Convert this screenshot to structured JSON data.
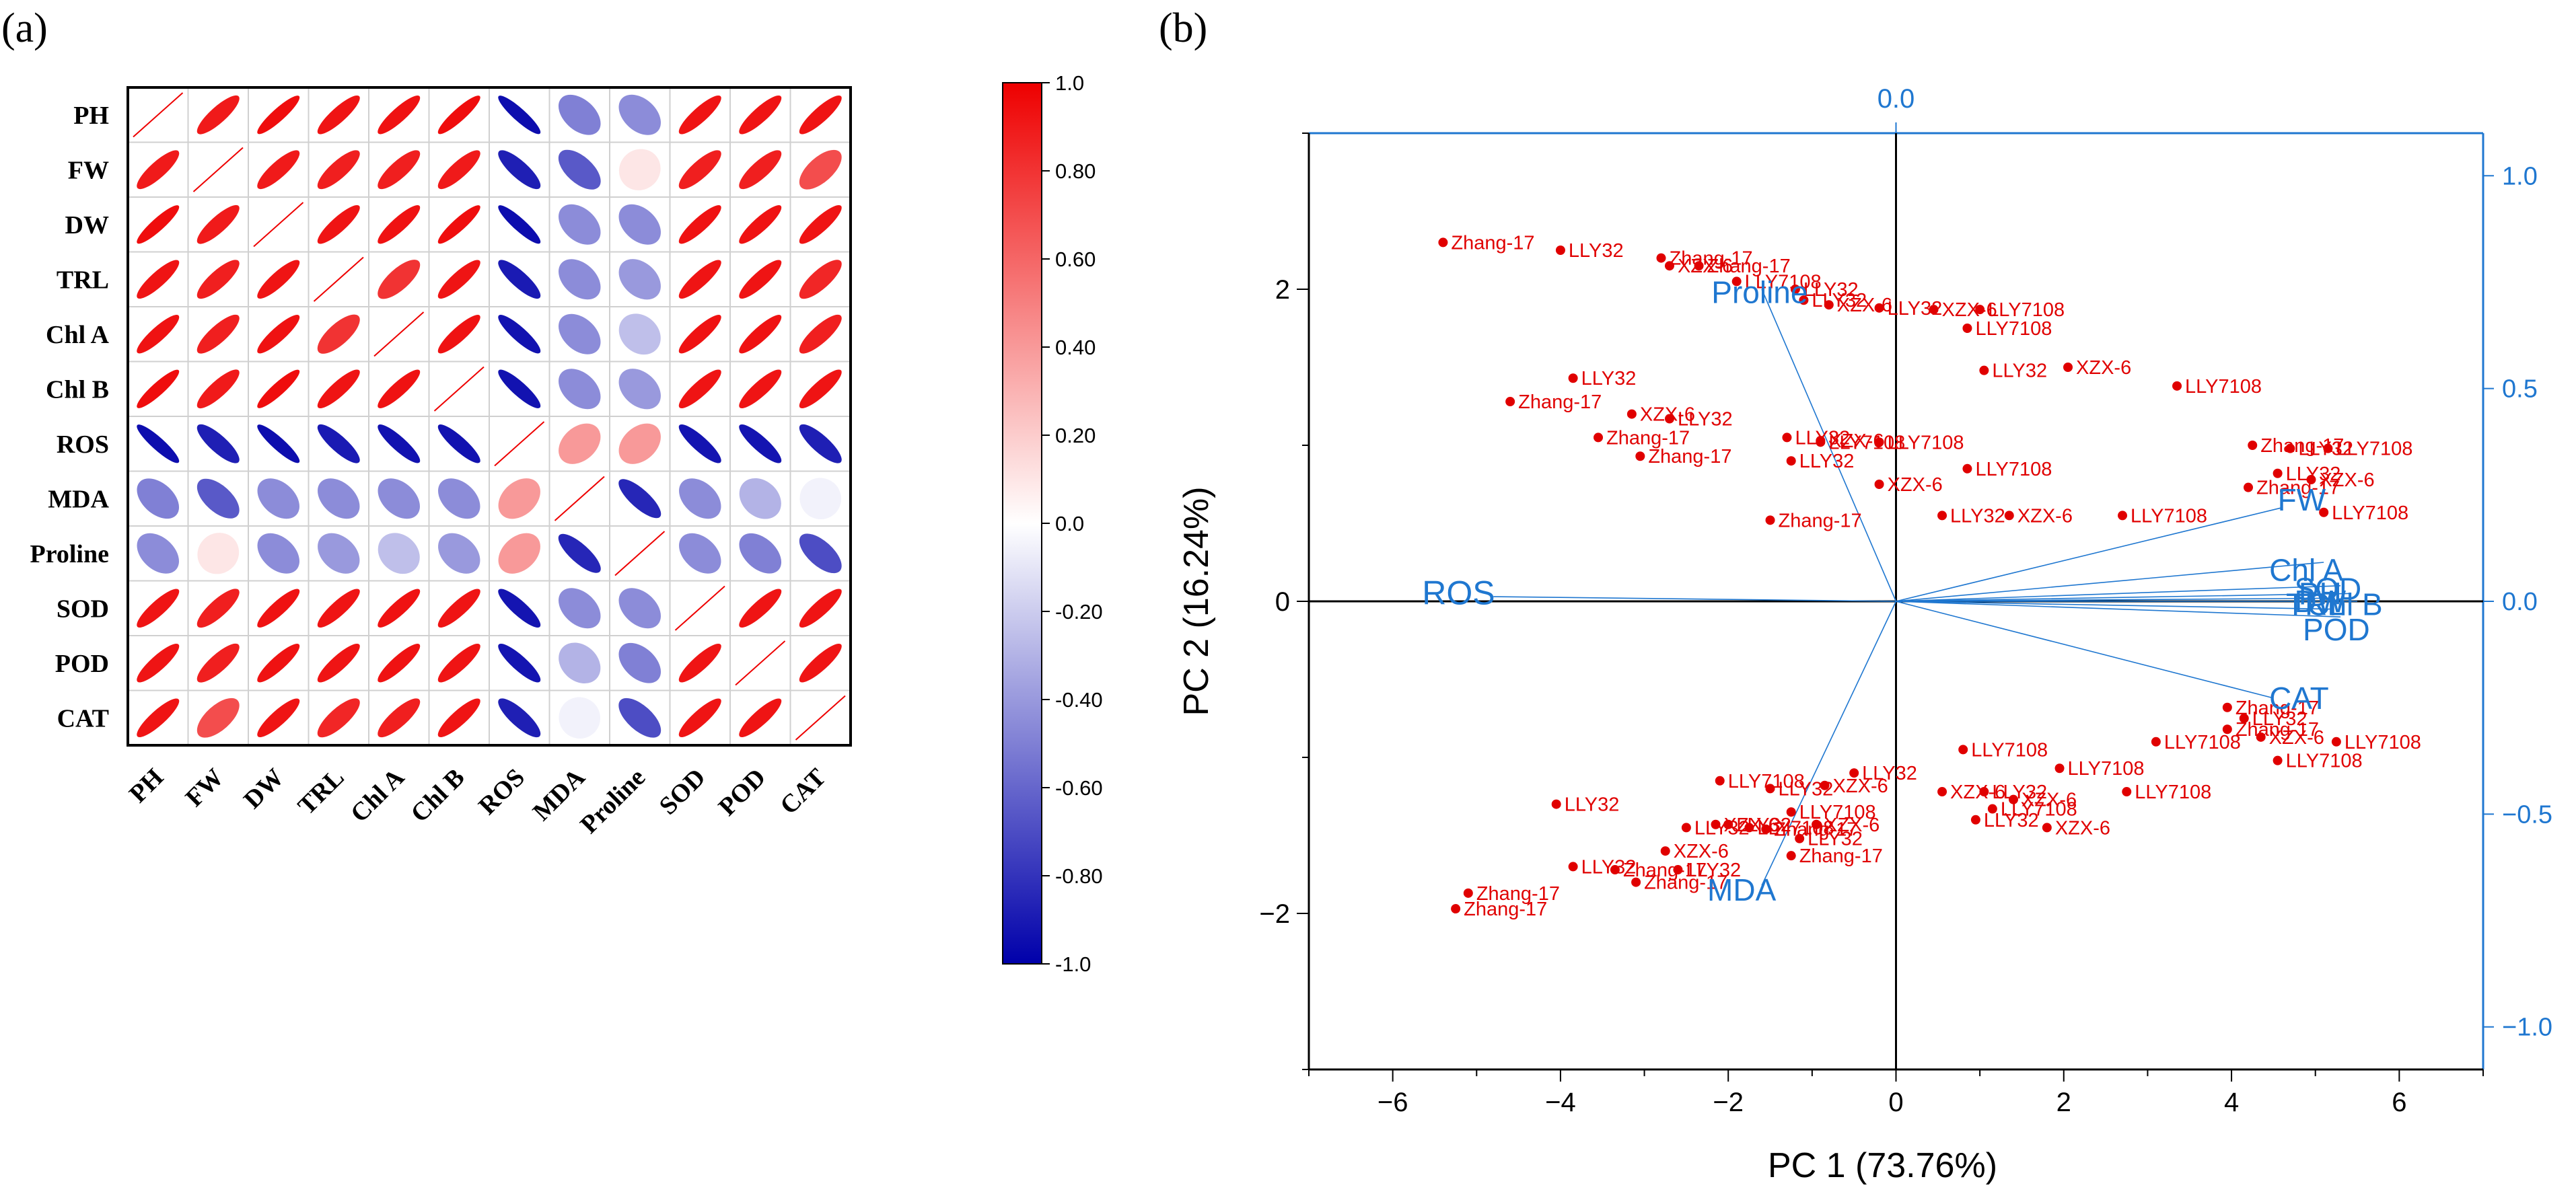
{
  "panel_a_label": "(a)",
  "panel_b_label": "(b)",
  "chart_data": [
    {
      "type": "heatmap",
      "subtype": "correlation-ellipse",
      "variables": [
        "PH",
        "FW",
        "DW",
        "TRL",
        "Chl A",
        "Chl B",
        "ROS",
        "MDA",
        "Proline",
        "SOD",
        "POD",
        "CAT"
      ],
      "matrix": [
        [
          1.0,
          0.9,
          0.95,
          0.92,
          0.93,
          0.95,
          -0.95,
          -0.5,
          -0.45,
          0.92,
          0.92,
          0.92
        ],
        [
          0.9,
          1.0,
          0.9,
          0.88,
          0.88,
          0.9,
          -0.88,
          -0.65,
          0.1,
          0.88,
          0.88,
          0.7
        ],
        [
          0.95,
          0.9,
          1.0,
          0.92,
          0.93,
          0.95,
          -0.95,
          -0.45,
          -0.45,
          0.93,
          0.93,
          0.92
        ],
        [
          0.92,
          0.88,
          0.92,
          1.0,
          0.8,
          0.92,
          -0.9,
          -0.45,
          -0.4,
          0.92,
          0.92,
          0.85
        ],
        [
          0.93,
          0.88,
          0.93,
          0.8,
          1.0,
          0.93,
          -0.93,
          -0.45,
          -0.25,
          0.93,
          0.93,
          0.88
        ],
        [
          0.95,
          0.9,
          0.95,
          0.92,
          0.93,
          1.0,
          -0.93,
          -0.45,
          -0.4,
          0.92,
          0.92,
          0.92
        ],
        [
          -0.95,
          -0.88,
          -0.95,
          -0.9,
          -0.93,
          -0.93,
          1.0,
          0.4,
          0.4,
          -0.92,
          -0.92,
          -0.88
        ],
        [
          -0.5,
          -0.65,
          -0.45,
          -0.45,
          -0.45,
          -0.45,
          0.4,
          1.0,
          -0.85,
          -0.45,
          -0.3,
          -0.05
        ],
        [
          -0.45,
          0.1,
          -0.45,
          -0.4,
          -0.25,
          -0.4,
          0.4,
          -0.85,
          1.0,
          -0.45,
          -0.5,
          -0.7
        ],
        [
          0.92,
          0.88,
          0.93,
          0.92,
          0.93,
          0.92,
          -0.92,
          -0.45,
          -0.45,
          1.0,
          0.92,
          0.92
        ],
        [
          0.92,
          0.88,
          0.93,
          0.92,
          0.93,
          0.92,
          -0.92,
          -0.3,
          -0.5,
          0.92,
          1.0,
          0.92
        ],
        [
          0.92,
          0.7,
          0.92,
          0.85,
          0.88,
          0.92,
          -0.88,
          -0.05,
          -0.7,
          0.92,
          0.92,
          1.0
        ]
      ],
      "colorbar": {
        "min": -1.0,
        "max": 1.0,
        "tick_labels": [
          "1.0",
          "0.80",
          "0.60",
          "0.40",
          "0.20",
          "0.0",
          "-0.20",
          "-0.40",
          "-0.60",
          "-0.80",
          "-1.0"
        ],
        "tick_values": [
          1.0,
          0.8,
          0.6,
          0.4,
          0.2,
          0.0,
          -0.2,
          -0.4,
          -0.6,
          -0.8,
          -1.0
        ],
        "high_color": "#ee0000",
        "mid_color": "#ffffff",
        "low_color": "#0000aa"
      }
    },
    {
      "type": "scatter",
      "subtype": "pca-biplot",
      "xlabel": "PC 1 (73.76%)",
      "ylabel": "PC 2 (16.24%)",
      "xlim": [
        -7,
        7
      ],
      "ylim": [
        -3,
        3
      ],
      "x_ticks": [
        -6,
        -4,
        -2,
        0,
        2,
        4,
        6
      ],
      "x_tick_labels": [
        "−6",
        "−4",
        "−2",
        "0",
        "2",
        "4",
        "6"
      ],
      "y_ticks": [
        -2,
        0,
        2
      ],
      "y_tick_labels": [
        "−2",
        "0",
        "2"
      ],
      "top_axis_label": "0.0",
      "right_ticks": [
        1.0,
        0.5,
        0.0,
        -0.5,
        -1.0
      ],
      "right_tick_labels": [
        "1.0",
        "0.5",
        "0.0",
        "−0.5",
        "−1.0"
      ],
      "point_color": "#e00000",
      "loading_color": "#1f77d0",
      "points": [
        {
          "x": -5.4,
          "y": 2.3,
          "label": "Zhang-17"
        },
        {
          "x": -4.0,
          "y": 2.25,
          "label": "LLY32"
        },
        {
          "x": -2.8,
          "y": 2.2,
          "label": "Zhang-17"
        },
        {
          "x": -2.7,
          "y": 2.15,
          "label": "XZX-6"
        },
        {
          "x": -2.35,
          "y": 2.15,
          "label": "Zhang-17"
        },
        {
          "x": -1.9,
          "y": 2.05,
          "label": "LLY7108"
        },
        {
          "x": -1.2,
          "y": 2.0,
          "label": "LLY32"
        },
        {
          "x": -1.1,
          "y": 1.93,
          "label": "LLY32"
        },
        {
          "x": -0.8,
          "y": 1.9,
          "label": "XZX-6"
        },
        {
          "x": -0.2,
          "y": 1.88,
          "label": "LLY32"
        },
        {
          "x": 0.45,
          "y": 1.87,
          "label": "XZX-6"
        },
        {
          "x": 1.0,
          "y": 1.87,
          "label": "LLY7108"
        },
        {
          "x": 0.85,
          "y": 1.75,
          "label": "LLY7108"
        },
        {
          "x": 1.05,
          "y": 1.48,
          "label": "LLY32"
        },
        {
          "x": 2.05,
          "y": 1.5,
          "label": "XZX-6"
        },
        {
          "x": 3.35,
          "y": 1.38,
          "label": "LLY7108"
        },
        {
          "x": -3.85,
          "y": 1.43,
          "label": "LLY32"
        },
        {
          "x": -4.6,
          "y": 1.28,
          "label": "Zhang-17"
        },
        {
          "x": -3.15,
          "y": 1.2,
          "label": "XZX-6"
        },
        {
          "x": -2.7,
          "y": 1.17,
          "label": "LLY32"
        },
        {
          "x": -3.55,
          "y": 1.05,
          "label": "Zhang-17"
        },
        {
          "x": -1.3,
          "y": 1.05,
          "label": "LLY32"
        },
        {
          "x": -0.9,
          "y": 1.03,
          "label": "XZX-6"
        },
        {
          "x": -0.9,
          "y": 1.02,
          "label": "LLY7108"
        },
        {
          "x": -0.2,
          "y": 1.02,
          "label": "LLY7108"
        },
        {
          "x": -3.05,
          "y": 0.93,
          "label": "Zhang-17"
        },
        {
          "x": -1.25,
          "y": 0.9,
          "label": "LLY32"
        },
        {
          "x": 0.85,
          "y": 0.85,
          "label": "LLY7108"
        },
        {
          "x": -0.2,
          "y": 0.75,
          "label": "XZX-6"
        },
        {
          "x": 0.55,
          "y": 0.55,
          "label": "LLY32"
        },
        {
          "x": 1.35,
          "y": 0.55,
          "label": "XZX-6"
        },
        {
          "x": 2.7,
          "y": 0.55,
          "label": "LLY7108"
        },
        {
          "x": -1.5,
          "y": 0.52,
          "label": "Zhang-17"
        },
        {
          "x": 4.25,
          "y": 1.0,
          "label": "Zhang-17"
        },
        {
          "x": 4.7,
          "y": 0.98,
          "label": "LLY32"
        },
        {
          "x": 5.15,
          "y": 0.98,
          "label": "LLY7108"
        },
        {
          "x": 4.55,
          "y": 0.82,
          "label": "LLY32"
        },
        {
          "x": 4.95,
          "y": 0.78,
          "label": "XZX-6"
        },
        {
          "x": 4.2,
          "y": 0.73,
          "label": "Zhang-17"
        },
        {
          "x": 5.1,
          "y": 0.57,
          "label": "LLY7108"
        },
        {
          "x": 3.95,
          "y": -0.68,
          "label": "Zhang-17"
        },
        {
          "x": 4.15,
          "y": -0.75,
          "label": "LLY32"
        },
        {
          "x": 3.95,
          "y": -0.82,
          "label": "Zhang-17"
        },
        {
          "x": 4.35,
          "y": -0.87,
          "label": "XZX-6"
        },
        {
          "x": 3.1,
          "y": -0.9,
          "label": "LLY7108"
        },
        {
          "x": 5.25,
          "y": -0.9,
          "label": "LLY7108"
        },
        {
          "x": 4.55,
          "y": -1.02,
          "label": "LLY7108"
        },
        {
          "x": 0.8,
          "y": -0.95,
          "label": "LLY7108"
        },
        {
          "x": 1.95,
          "y": -1.07,
          "label": "LLY7108"
        },
        {
          "x": -0.5,
          "y": -1.1,
          "label": "LLY32"
        },
        {
          "x": -2.1,
          "y": -1.15,
          "label": "LLY7108"
        },
        {
          "x": -0.85,
          "y": -1.18,
          "label": "XZX-6"
        },
        {
          "x": -1.5,
          "y": -1.2,
          "label": "LLY32"
        },
        {
          "x": 2.75,
          "y": -1.22,
          "label": "LLY7108"
        },
        {
          "x": 0.55,
          "y": -1.22,
          "label": "XZX-6"
        },
        {
          "x": 1.05,
          "y": -1.22,
          "label": "LLY32"
        },
        {
          "x": 1.4,
          "y": -1.27,
          "label": "XZX-6"
        },
        {
          "x": 1.15,
          "y": -1.33,
          "label": "LLY7108"
        },
        {
          "x": -4.05,
          "y": -1.3,
          "label": "LLY32"
        },
        {
          "x": -1.25,
          "y": -1.35,
          "label": "LLY7108"
        },
        {
          "x": 0.95,
          "y": -1.4,
          "label": "LLY32"
        },
        {
          "x": 1.8,
          "y": -1.45,
          "label": "XZX-6"
        },
        {
          "x": -2.0,
          "y": -1.43,
          "label": "LLY32"
        },
        {
          "x": -2.5,
          "y": -1.45,
          "label": "LLY32"
        },
        {
          "x": -2.15,
          "y": -1.43,
          "label": "XZX-6"
        },
        {
          "x": -1.75,
          "y": -1.45,
          "label": "LLY7108"
        },
        {
          "x": -1.55,
          "y": -1.46,
          "label": "Zhang-17"
        },
        {
          "x": -0.95,
          "y": -1.43,
          "label": "XZX-6"
        },
        {
          "x": -1.15,
          "y": -1.52,
          "label": "LLY32"
        },
        {
          "x": -1.25,
          "y": -1.63,
          "label": "Zhang-17"
        },
        {
          "x": -2.75,
          "y": -1.6,
          "label": "XZX-6"
        },
        {
          "x": -3.85,
          "y": -1.7,
          "label": "LLY32"
        },
        {
          "x": -3.35,
          "y": -1.72,
          "label": "Zhang-17"
        },
        {
          "x": -2.6,
          "y": -1.72,
          "label": "LLY32"
        },
        {
          "x": -3.1,
          "y": -1.8,
          "label": "Zhang-17"
        },
        {
          "x": -5.1,
          "y": -1.87,
          "label": "Zhang-17"
        },
        {
          "x": -5.25,
          "y": -1.97,
          "label": "Zhang-17"
        }
      ],
      "loadings": [
        {
          "label": "Proline",
          "x": -1.6,
          "y": 2.0,
          "label_x": -2.2,
          "label_y": 1.98,
          "label_size": 46
        },
        {
          "label": "FW",
          "x": 4.6,
          "y": 0.6,
          "label_x": 4.55,
          "label_y": 0.65,
          "label_size": 46
        },
        {
          "label": "Chl A",
          "x": 5.1,
          "y": 0.25,
          "label_x": 4.45,
          "label_y": 0.2,
          "label_size": 46
        },
        {
          "label": "SOD",
          "x": 5.3,
          "y": 0.1,
          "label_x": 4.75,
          "label_y": 0.08,
          "label_size": 46
        },
        {
          "label": "DW",
          "x": 5.4,
          "y": 0.05,
          "label_x": 4.75,
          "label_y": 0.0,
          "label_size": 46
        },
        {
          "label": "TRL",
          "x": 5.2,
          "y": 0.02,
          "label_x": 4.65,
          "label_y": -0.02,
          "label_size": 46
        },
        {
          "label": "Chl B",
          "x": 5.5,
          "y": 0.0,
          "label_x": 4.9,
          "label_y": -0.02,
          "label_size": 46
        },
        {
          "label": "PH",
          "x": 5.2,
          "y": -0.05,
          "label_x": 4.8,
          "label_y": 0.05,
          "label_size": 46
        },
        {
          "label": "POD",
          "x": 5.3,
          "y": -0.1,
          "label_x": 4.85,
          "label_y": -0.18,
          "label_size": 46
        },
        {
          "label": "CAT",
          "x": 4.5,
          "y": -0.62,
          "label_x": 4.45,
          "label_y": -0.62,
          "label_size": 46
        },
        {
          "label": "ROS",
          "x": -4.8,
          "y": 0.03,
          "label_x": -5.65,
          "label_y": 0.05,
          "label_size": 50
        },
        {
          "label": "MDA",
          "x": -1.6,
          "y": -1.82,
          "label_x": -2.25,
          "label_y": -1.85,
          "label_size": 46
        }
      ]
    }
  ]
}
